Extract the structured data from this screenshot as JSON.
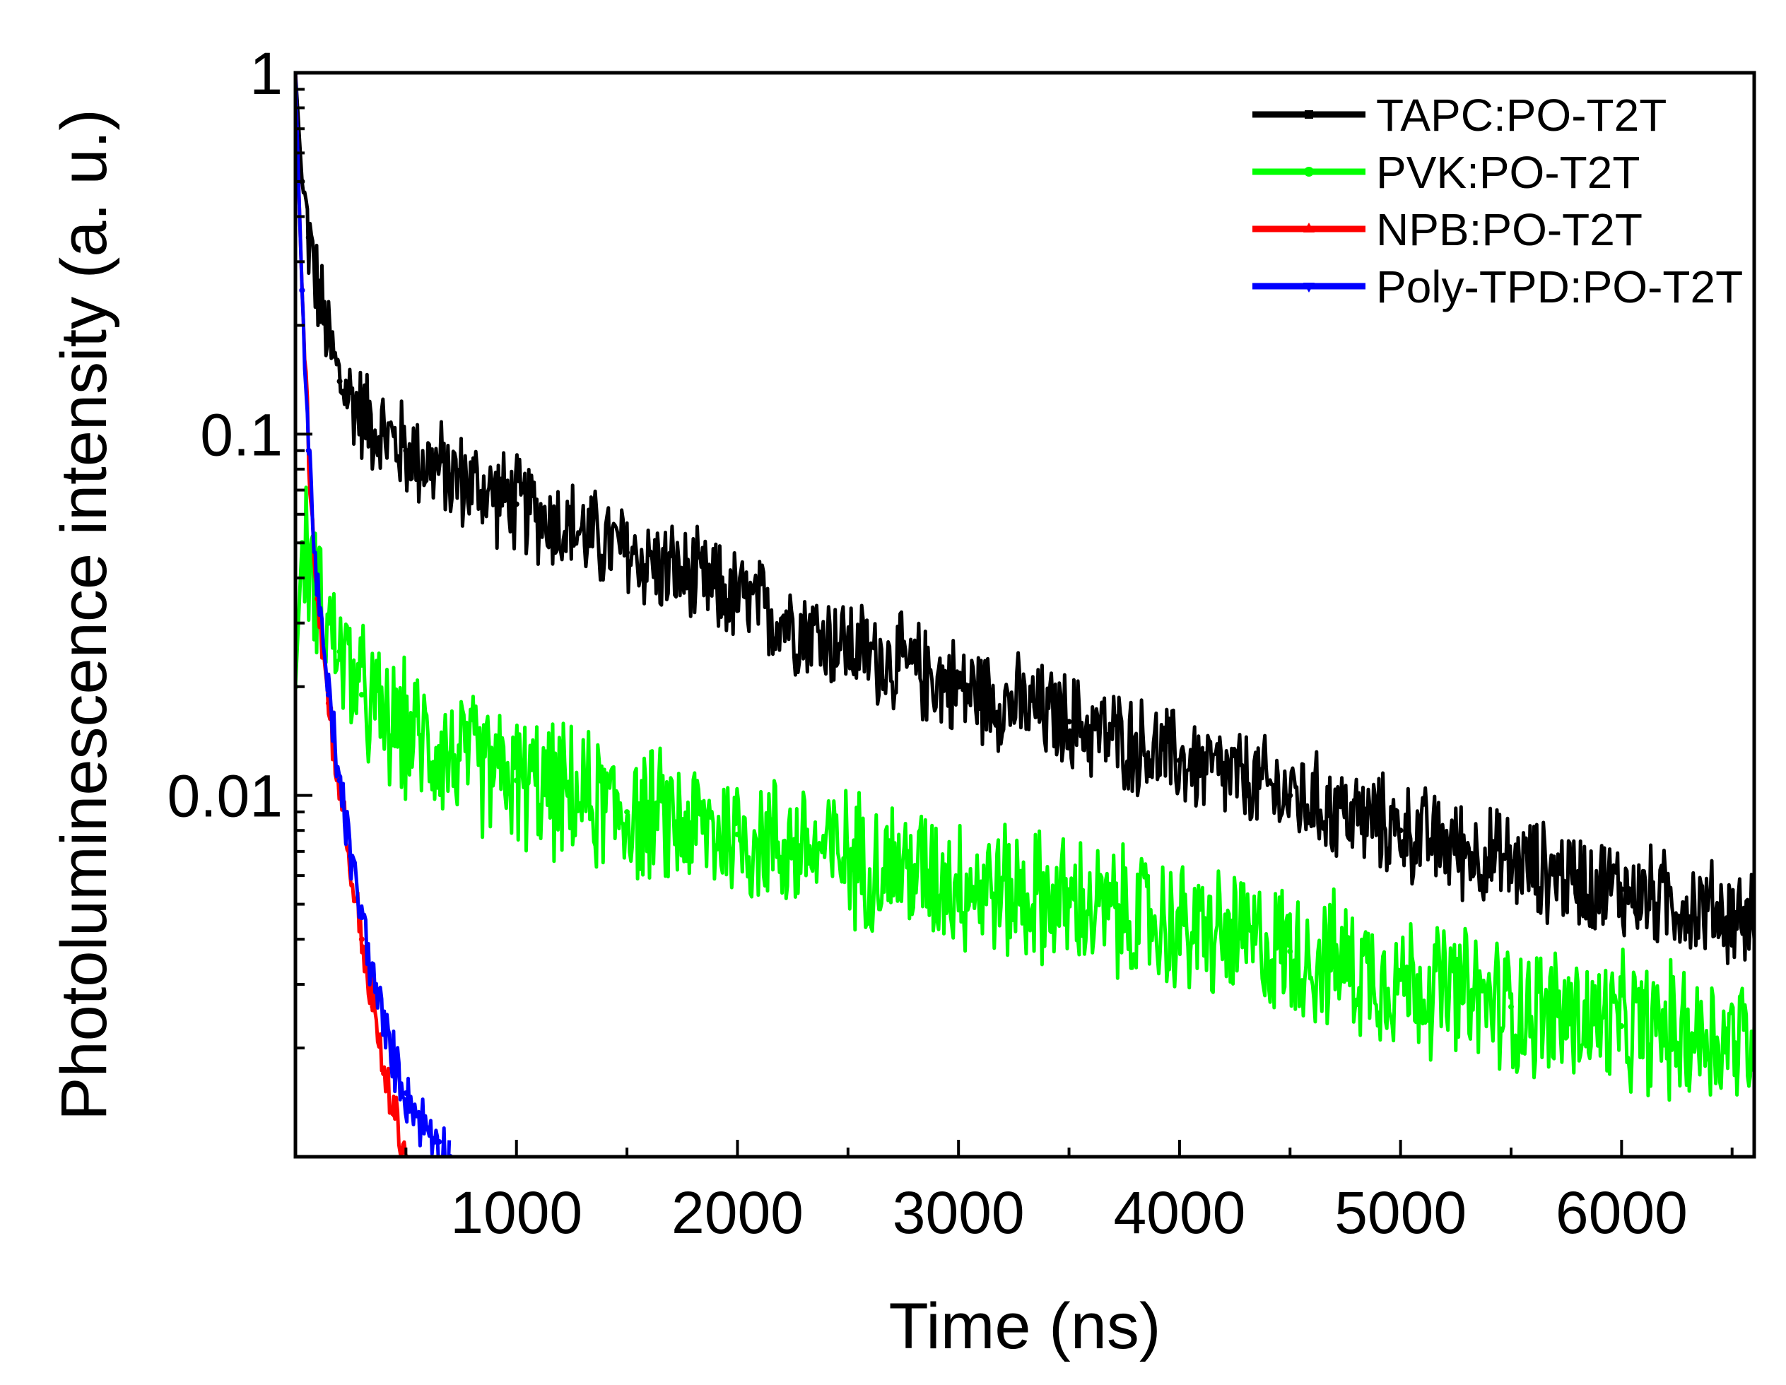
{
  "chart_data": {
    "type": "line",
    "title": "",
    "xlabel": "Time (ns)",
    "ylabel": "Photoluminescence intensity (a. u.)",
    "xscale": "linear",
    "yscale": "log",
    "xlim": [
      0,
      6600
    ],
    "ylim": [
      0.001,
      1
    ],
    "xticks": [
      1000,
      2000,
      3000,
      4000,
      5000,
      6000
    ],
    "xtick_labels": [
      "1000",
      "2000",
      "3000",
      "4000",
      "5000",
      "6000"
    ],
    "yticks": [
      0.01,
      0.1,
      1
    ],
    "ytick_labels": [
      "0.01",
      "0.1",
      "1"
    ],
    "grid": false,
    "legend_position": "top-right",
    "series": [
      {
        "name": "TAPC:PO-T2T",
        "color": "#000000",
        "marker": "square",
        "x": [
          0,
          30,
          60,
          100,
          150,
          200,
          300,
          400,
          500,
          700,
          1000,
          1500,
          2000,
          2500,
          3000,
          3500,
          4000,
          4500,
          5000,
          5500,
          6000,
          6600
        ],
        "y": [
          1.0,
          0.5,
          0.35,
          0.25,
          0.18,
          0.14,
          0.115,
          0.1,
          0.09,
          0.077,
          0.064,
          0.047,
          0.035,
          0.026,
          0.02,
          0.016,
          0.0125,
          0.01,
          0.008,
          0.0065,
          0.0055,
          0.0045
        ],
        "noise": 0.16
      },
      {
        "name": "PVK:PO-T2T",
        "color": "#00ff00",
        "marker": "circle",
        "x": [
          0,
          30,
          60,
          100,
          150,
          200,
          300,
          400,
          500,
          700,
          1000,
          1500,
          2000,
          2500,
          3000,
          3500,
          4000,
          4500,
          5000,
          5500,
          6000,
          6600
        ],
        "y": [
          0.02,
          0.05,
          0.045,
          0.038,
          0.03,
          0.025,
          0.019,
          0.016,
          0.015,
          0.013,
          0.011,
          0.009,
          0.0078,
          0.0068,
          0.0058,
          0.005,
          0.0043,
          0.0037,
          0.0031,
          0.0026,
          0.0023,
          0.0021
        ],
        "noise": 0.22
      },
      {
        "name": "NPB:PO-T2T",
        "color": "#ff0000",
        "marker": "triangle-up",
        "x": [
          0,
          10,
          30,
          60,
          100,
          150,
          200,
          250,
          300,
          350,
          400,
          450,
          500
        ],
        "y": [
          1.0,
          0.6,
          0.25,
          0.09,
          0.035,
          0.018,
          0.0105,
          0.0062,
          0.004,
          0.0026,
          0.0017,
          0.0013,
          0.001
        ],
        "noise": 0.08
      },
      {
        "name": "Poly-TPD:PO-T2T",
        "color": "#0000ff",
        "marker": "triangle-down",
        "x": [
          0,
          10,
          30,
          60,
          100,
          150,
          200,
          250,
          300,
          350,
          400,
          450,
          500,
          550,
          600,
          650,
          700
        ],
        "y": [
          1.0,
          0.6,
          0.25,
          0.09,
          0.036,
          0.019,
          0.011,
          0.0068,
          0.0046,
          0.0032,
          0.0023,
          0.0018,
          0.0015,
          0.0013,
          0.0012,
          0.0011,
          0.001
        ],
        "noise": 0.09
      }
    ]
  }
}
